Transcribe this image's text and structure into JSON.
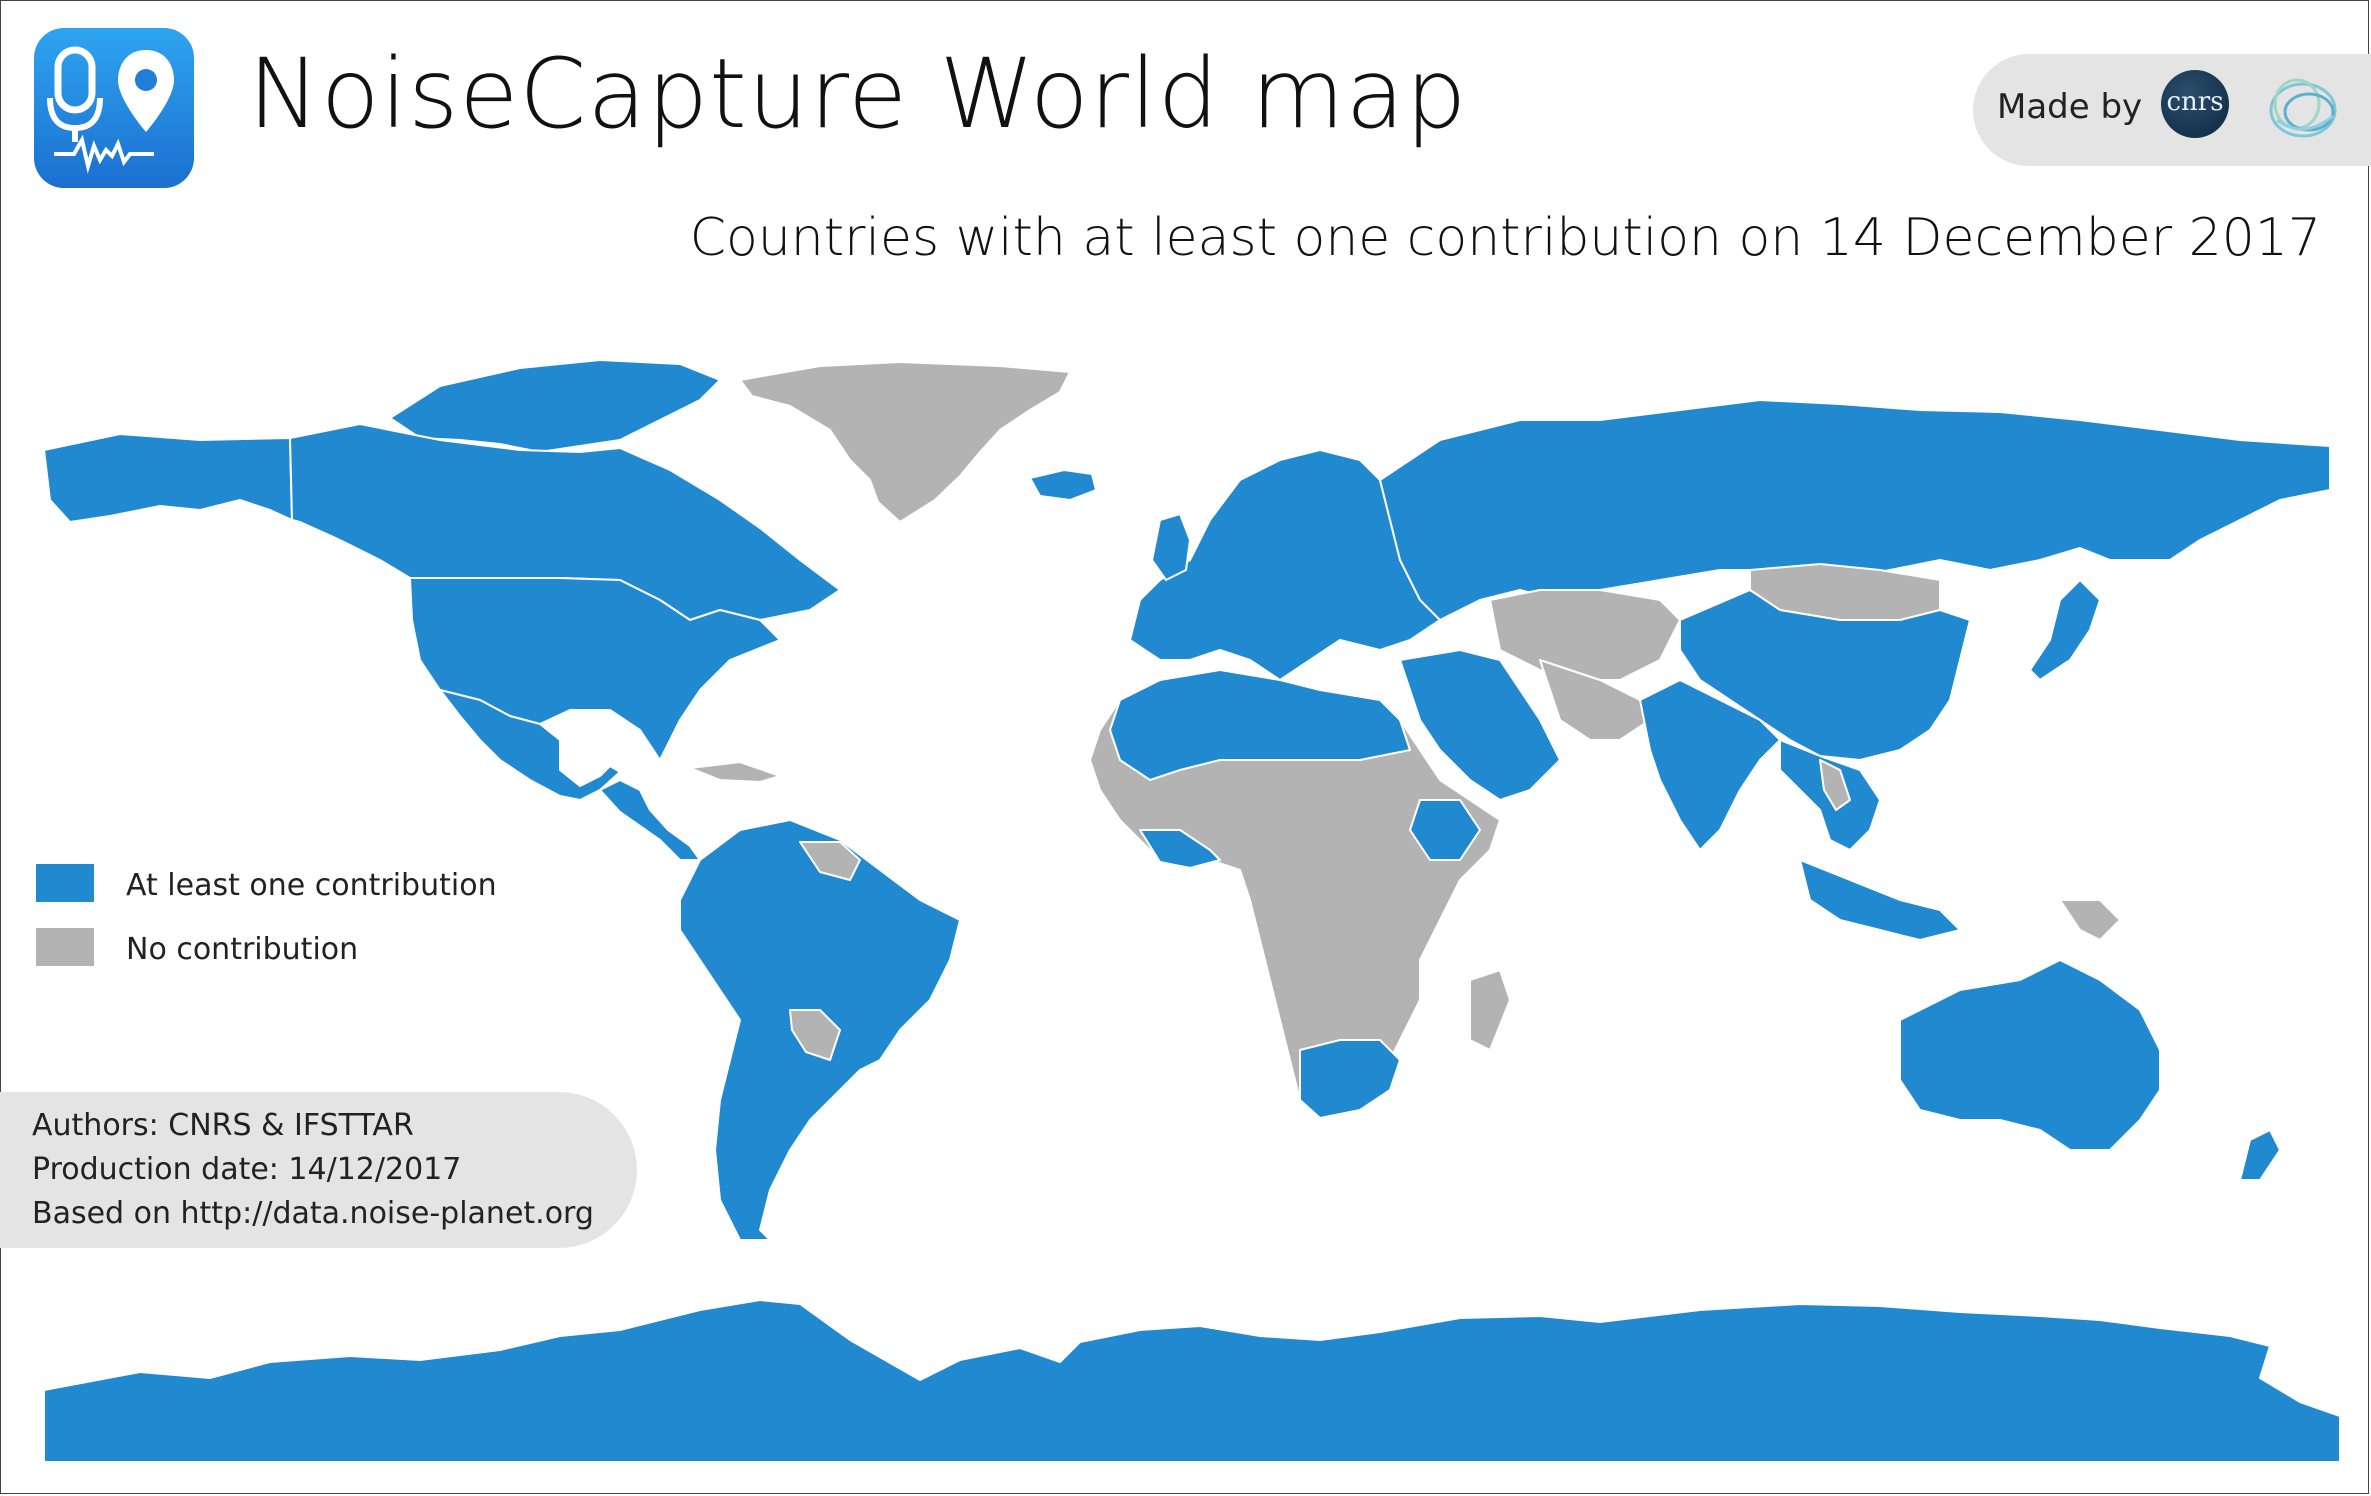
{
  "title": "NoiseCapture World map",
  "subtitle": "Countries with at least one contribution on 14 December 2017",
  "made_by": {
    "label": "Made by",
    "logos": [
      {
        "name": "cnrs-logo",
        "text": "cnrs"
      },
      {
        "name": "ifsttar-logo",
        "text": ""
      }
    ]
  },
  "app_icon": {
    "name": "noisecapture-app-icon"
  },
  "legend": [
    {
      "label": "At least one contribution",
      "color": "#2189cf"
    },
    {
      "label": "No contribution",
      "color": "#b3b3b3"
    }
  ],
  "credits": [
    "Authors: CNRS & IFSTTAR",
    "Production date: 14/12/2017",
    "Based on http://data.noise-planet.org"
  ],
  "colors": {
    "contribution": "#2189cf",
    "no_contribution": "#b3b3b3",
    "ocean": "#ffffff",
    "border": "#ffffff",
    "panel": "#e4e4e4"
  }
}
